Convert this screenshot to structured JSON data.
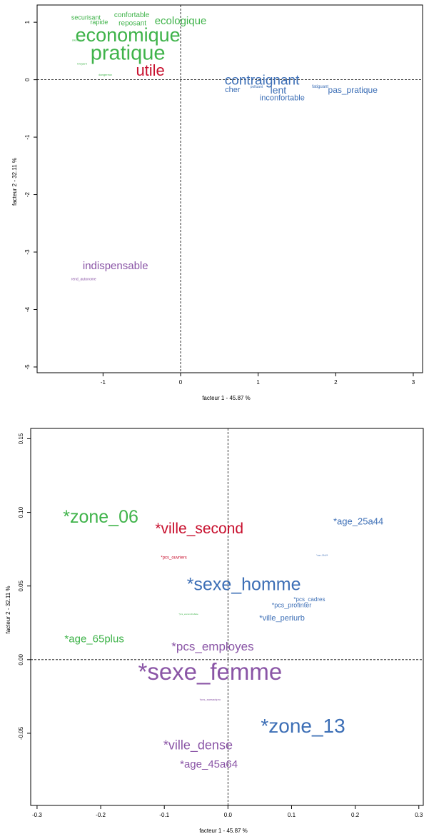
{
  "colors": {
    "green": "#3fb34a",
    "red": "#c8102e",
    "blue": "#3d6fb6",
    "purple": "#8a55a6"
  },
  "chart_data": [
    {
      "type": "scatter",
      "title": "",
      "xlabel": "facteur  1  - 45.87 %",
      "ylabel": "facteur  2  - 32.11 %",
      "xlim": [
        -1.85,
        3.12
      ],
      "ylim": [
        -5.1,
        1.3
      ],
      "xticks": [
        -1,
        0,
        1,
        2,
        3
      ],
      "yticks": [
        -5,
        -4,
        -3,
        -2,
        -1,
        0,
        1
      ],
      "reference_lines": {
        "x": 0,
        "y": 0,
        "style": "dashed"
      },
      "points": [
        {
          "label": "securisant",
          "x": -1.22,
          "y": 1.08,
          "color": "green",
          "size": 9
        },
        {
          "label": "confortable",
          "x": -0.63,
          "y": 1.12,
          "color": "green",
          "size": 10
        },
        {
          "label": "rapide",
          "x": -1.05,
          "y": 1.0,
          "color": "green",
          "size": 9
        },
        {
          "label": "reposant",
          "x": -0.62,
          "y": 0.98,
          "color": "green",
          "size": 10
        },
        {
          "label": "ecologique",
          "x": 0.0,
          "y": 1.02,
          "color": "green",
          "size": 15
        },
        {
          "label": "economique",
          "x": -0.68,
          "y": 0.78,
          "color": "green",
          "size": 27
        },
        {
          "label": "silencieux",
          "x": -1.32,
          "y": 0.69,
          "color": "green",
          "size": 4
        },
        {
          "label": "pratique",
          "x": -0.68,
          "y": 0.46,
          "color": "green",
          "size": 29
        },
        {
          "label": "bruyant",
          "x": -1.27,
          "y": 0.28,
          "color": "green",
          "size": 4
        },
        {
          "label": "utile",
          "x": -0.39,
          "y": 0.16,
          "color": "red",
          "size": 22
        },
        {
          "label": "dangereux",
          "x": -0.97,
          "y": 0.09,
          "color": "green",
          "size": 4
        },
        {
          "label": "contraignant",
          "x": 1.05,
          "y": -0.02,
          "color": "blue",
          "size": 19
        },
        {
          "label": "cher",
          "x": 0.67,
          "y": -0.18,
          "color": "blue",
          "size": 11
        },
        {
          "label": "polluant",
          "x": 0.98,
          "y": -0.13,
          "color": "blue",
          "size": 5
        },
        {
          "label": "lent",
          "x": 1.26,
          "y": -0.18,
          "color": "blue",
          "size": 14
        },
        {
          "label": "fatiguant",
          "x": 1.8,
          "y": -0.13,
          "color": "blue",
          "size": 6
        },
        {
          "label": "pas_pratique",
          "x": 2.22,
          "y": -0.18,
          "color": "blue",
          "size": 12
        },
        {
          "label": "inconfortable",
          "x": 1.31,
          "y": -0.32,
          "color": "blue",
          "size": 11
        },
        {
          "label": "indispensable",
          "x": -0.84,
          "y": -3.24,
          "color": "purple",
          "size": 15
        },
        {
          "label": "rend_autonome",
          "x": -1.25,
          "y": -3.48,
          "color": "purple",
          "size": 5
        }
      ]
    },
    {
      "type": "scatter",
      "title": "",
      "xlabel": "facteur  1  - 45.87 %",
      "ylabel": "facteur  2  - 32.11 %",
      "xlim": [
        -0.31,
        0.307
      ],
      "ylim": [
        -0.099,
        0.157
      ],
      "xticks": [
        -0.3,
        -0.2,
        -0.1,
        0.0,
        0.1,
        0.2,
        0.3
      ],
      "xtick_labels": [
        "-0.3",
        "-0.2",
        "-0.1",
        "0.0",
        "0.1",
        "0.2",
        "0.3"
      ],
      "yticks": [
        -0.05,
        0.0,
        0.05,
        0.1,
        0.15
      ],
      "ytick_labels": [
        "-0.05",
        "0.00",
        "0.05",
        "0.10",
        "0.15"
      ],
      "reference_lines": {
        "x": 0,
        "y": 0,
        "style": "dashed"
      },
      "points": [
        {
          "label": "*zone_06",
          "x": -0.2,
          "y": 0.097,
          "color": "green",
          "size": 25
        },
        {
          "label": "*ville_second",
          "x": -0.045,
          "y": 0.089,
          "color": "red",
          "size": 21
        },
        {
          "label": "*age_25a44",
          "x": 0.205,
          "y": 0.094,
          "color": "blue",
          "size": 13
        },
        {
          "label": "*pcs_ouvriers",
          "x": -0.085,
          "y": 0.069,
          "color": "red",
          "size": 6
        },
        {
          "label": "*age_18a24",
          "x": 0.148,
          "y": 0.071,
          "color": "blue",
          "size": 3
        },
        {
          "label": "*sexe_homme",
          "x": 0.025,
          "y": 0.051,
          "color": "blue",
          "size": 25
        },
        {
          "label": "*pcs_cadres",
          "x": 0.128,
          "y": 0.041,
          "color": "blue",
          "size": 8
        },
        {
          "label": "*pcs_profinter",
          "x": 0.1,
          "y": 0.037,
          "color": "blue",
          "size": 9
        },
        {
          "label": "*pcs_encomcheftate",
          "x": -0.062,
          "y": 0.031,
          "color": "green",
          "size": 3
        },
        {
          "label": "*ville_periurb",
          "x": 0.085,
          "y": 0.028,
          "color": "blue",
          "size": 11
        },
        {
          "label": "*age_65plus",
          "x": -0.21,
          "y": 0.014,
          "color": "green",
          "size": 15
        },
        {
          "label": "*pcs_employes",
          "x": -0.024,
          "y": 0.009,
          "color": "purple",
          "size": 17
        },
        {
          "label": "*sexe_femme",
          "x": -0.028,
          "y": -0.008,
          "color": "purple",
          "size": 33
        },
        {
          "label": "*pcs_sansactpro",
          "x": -0.028,
          "y": -0.027,
          "color": "purple",
          "size": 4
        },
        {
          "label": "*zone_13",
          "x": 0.118,
          "y": -0.045,
          "color": "blue",
          "size": 28
        },
        {
          "label": "*ville_dense",
          "x": -0.047,
          "y": -0.058,
          "color": "purple",
          "size": 18
        },
        {
          "label": "*age_45a64",
          "x": -0.03,
          "y": -0.071,
          "color": "purple",
          "size": 15
        }
      ]
    }
  ]
}
